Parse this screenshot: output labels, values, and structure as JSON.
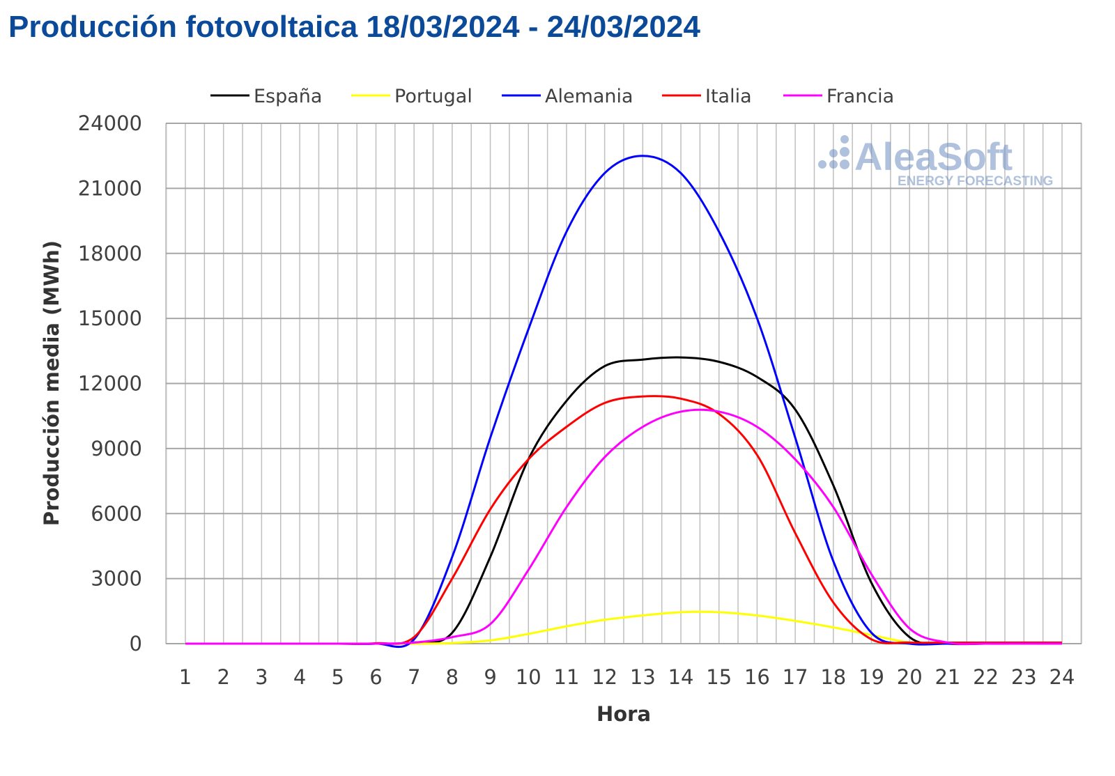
{
  "title": "Producción fotovoltaica 18/03/2024 - 24/03/2024",
  "logo": {
    "name": "AleaSoft",
    "tagline": "ENERGY FORECASTING"
  },
  "chart_data": {
    "type": "line",
    "title": "Producción fotovoltaica 18/03/2024 - 24/03/2024",
    "xlabel": "Hora",
    "ylabel": "Producción media (MWh)",
    "ylim": [
      0,
      24000
    ],
    "yticks": [
      0,
      3000,
      6000,
      9000,
      12000,
      15000,
      18000,
      21000,
      24000
    ],
    "x": [
      1,
      2,
      3,
      4,
      5,
      6,
      7,
      8,
      9,
      10,
      11,
      12,
      13,
      14,
      15,
      16,
      17,
      18,
      19,
      20,
      21,
      22,
      23,
      24
    ],
    "grid": true,
    "legend": "top",
    "series": [
      {
        "name": "España",
        "color": "#000000",
        "values": [
          0,
          0,
          0,
          0,
          0,
          0,
          50,
          500,
          4000,
          8500,
          11200,
          12800,
          13100,
          13200,
          13000,
          12300,
          10800,
          7300,
          2800,
          300,
          0,
          0,
          0,
          0
        ]
      },
      {
        "name": "Portugal",
        "color": "#ffff00",
        "values": [
          0,
          0,
          0,
          0,
          0,
          0,
          0,
          30,
          150,
          450,
          800,
          1100,
          1300,
          1450,
          1450,
          1300,
          1050,
          750,
          400,
          50,
          0,
          0,
          0,
          0
        ]
      },
      {
        "name": "Alemania",
        "color": "#0000ff",
        "values": [
          0,
          0,
          0,
          0,
          0,
          0,
          200,
          4000,
          9500,
          14500,
          19000,
          21700,
          22500,
          21700,
          19000,
          15000,
          9500,
          3800,
          500,
          0,
          0,
          0,
          0,
          0
        ]
      },
      {
        "name": "Italia",
        "color": "#ff0000",
        "values": [
          0,
          0,
          0,
          0,
          0,
          20,
          300,
          3000,
          6200,
          8500,
          10000,
          11100,
          11400,
          11300,
          10600,
          8700,
          5100,
          1900,
          200,
          50,
          50,
          50,
          50,
          50
        ]
      },
      {
        "name": "Francia",
        "color": "#ff00ff",
        "values": [
          0,
          0,
          0,
          0,
          0,
          0,
          50,
          300,
          900,
          3400,
          6300,
          8600,
          10000,
          10700,
          10700,
          10000,
          8500,
          6300,
          3200,
          700,
          50,
          0,
          0,
          0
        ]
      }
    ]
  }
}
